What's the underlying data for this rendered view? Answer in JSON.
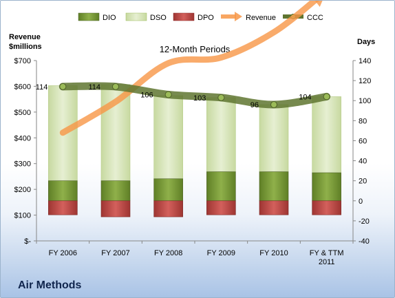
{
  "company": "Air Methods",
  "chart_data": {
    "type": "bar+line",
    "title": "12-Month Periods",
    "left_axis": {
      "label": "Revenue $millions",
      "ticks": [
        "$-",
        "$100",
        "$200",
        "$300",
        "$400",
        "$500",
        "$600",
        "$700"
      ],
      "range": [
        0,
        700
      ]
    },
    "right_axis": {
      "label": "Days",
      "ticks": [
        "-40",
        "-20",
        "0",
        "20",
        "40",
        "60",
        "80",
        "100",
        "120",
        "140"
      ],
      "range": [
        -40,
        140
      ]
    },
    "categories": [
      "FY 2006",
      "FY 2007",
      "FY 2008",
      "FY 2009",
      "FY 2010",
      "FY & TTM 2011"
    ],
    "legend": [
      "DIO",
      "DSO",
      "DPO",
      "Revenue",
      "CCC"
    ],
    "series": [
      {
        "name": "DIO",
        "axis": "days",
        "type": "stacked-bar",
        "values": [
          20,
          20,
          22,
          29,
          29,
          28
        ],
        "color": "#77933c"
      },
      {
        "name": "DSO",
        "axis": "days",
        "type": "stacked-bar",
        "values": [
          95,
          96,
          83,
          74,
          67,
          76
        ],
        "color": "#d7e4bd"
      },
      {
        "name": "DPO",
        "axis": "days",
        "type": "negative-bar",
        "values": [
          14,
          16,
          16,
          14,
          14,
          14
        ],
        "color": "#c0504d"
      },
      {
        "name": "Revenue",
        "axis": "revenue",
        "type": "line",
        "values": [
          420,
          540,
          690,
          712,
          810,
          970
        ],
        "color": "#f79646"
      },
      {
        "name": "CCC",
        "axis": "days",
        "type": "line",
        "values": [
          114,
          114,
          106,
          103,
          96,
          104
        ],
        "labels": [
          "114",
          "114",
          "106",
          "103",
          "96",
          "104"
        ],
        "color": "#5f7530"
      }
    ],
    "legend_position": "top",
    "grid": false
  }
}
